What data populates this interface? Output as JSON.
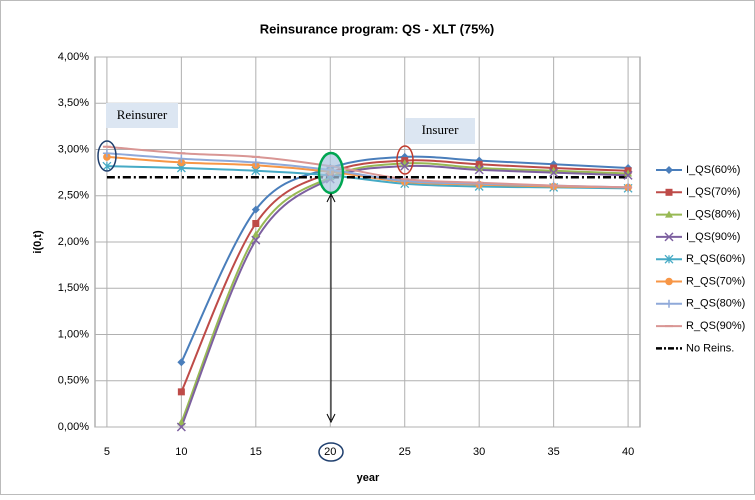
{
  "chart_data": {
    "type": "line",
    "title": "Reinsurance program: QS - XLT (75%)",
    "x_label": "year",
    "y_label": "i(0,t)",
    "x": [
      5,
      10,
      15,
      20,
      25,
      30,
      35,
      40
    ],
    "xlim": [
      4.2,
      40.8
    ],
    "xticks": [
      5,
      10,
      15,
      20,
      25,
      30,
      35,
      40
    ],
    "ylim": [
      0,
      4
    ],
    "yticks": [
      {
        "value": 0,
        "label": "0,00%"
      },
      {
        "value": 0.5,
        "label": "0,50%"
      },
      {
        "value": 1,
        "label": "1,00%"
      },
      {
        "value": 1.5,
        "label": "1,50%"
      },
      {
        "value": 2,
        "label": "2,00%"
      },
      {
        "value": 2.5,
        "label": "2,50%"
      },
      {
        "value": 3,
        "label": "3,00%"
      },
      {
        "value": 3.5,
        "label": "3,50%"
      },
      {
        "value": 4,
        "label": "4,00%"
      }
    ],
    "grid": true,
    "legend": "right",
    "annotations": [
      "Reinsurer",
      "Insurer"
    ],
    "series": [
      {
        "name": "I_QS(60%)",
        "color": "#4a7ebb",
        "marker": "diamond",
        "values": [
          null,
          0.7,
          2.35,
          2.8,
          2.92,
          2.88,
          2.84,
          2.8
        ]
      },
      {
        "name": "I_QS(70%)",
        "color": "#be4b48",
        "marker": "square",
        "values": [
          null,
          0.38,
          2.2,
          2.75,
          2.88,
          2.84,
          2.8,
          2.77
        ]
      },
      {
        "name": "I_QS(80%)",
        "color": "#98b954",
        "marker": "triangle",
        "values": [
          null,
          0.05,
          2.08,
          2.7,
          2.85,
          2.8,
          2.77,
          2.74
        ]
      },
      {
        "name": "I_QS(90%)",
        "color": "#7d60a0",
        "marker": "x",
        "values": [
          null,
          0.0,
          2.02,
          2.68,
          2.82,
          2.78,
          2.75,
          2.72
        ]
      },
      {
        "name": "R_QS(60%)",
        "color": "#46aac5",
        "marker": "star",
        "values": [
          2.82,
          2.8,
          2.77,
          2.72,
          2.63,
          2.6,
          2.59,
          2.58
        ]
      },
      {
        "name": "R_QS(70%)",
        "color": "#f79646",
        "marker": "circle",
        "values": [
          2.92,
          2.86,
          2.83,
          2.76,
          2.65,
          2.62,
          2.6,
          2.59
        ]
      },
      {
        "name": "R_QS(80%)",
        "color": "#8fa9d9",
        "marker": "plus",
        "values": [
          2.96,
          2.9,
          2.86,
          2.78,
          2.66,
          2.63,
          2.61,
          2.59
        ]
      },
      {
        "name": "R_QS(90%)",
        "color": "#d99694",
        "marker": "dash",
        "values": [
          3.03,
          2.96,
          2.92,
          2.82,
          2.68,
          2.64,
          2.61,
          2.59
        ]
      },
      {
        "name": "No Reins.",
        "color": "#000000",
        "marker": "none",
        "line_style": "dashdot",
        "values": [
          2.7,
          2.7,
          2.7,
          2.7,
          2.7,
          2.7,
          2.7,
          2.7
        ]
      }
    ]
  }
}
